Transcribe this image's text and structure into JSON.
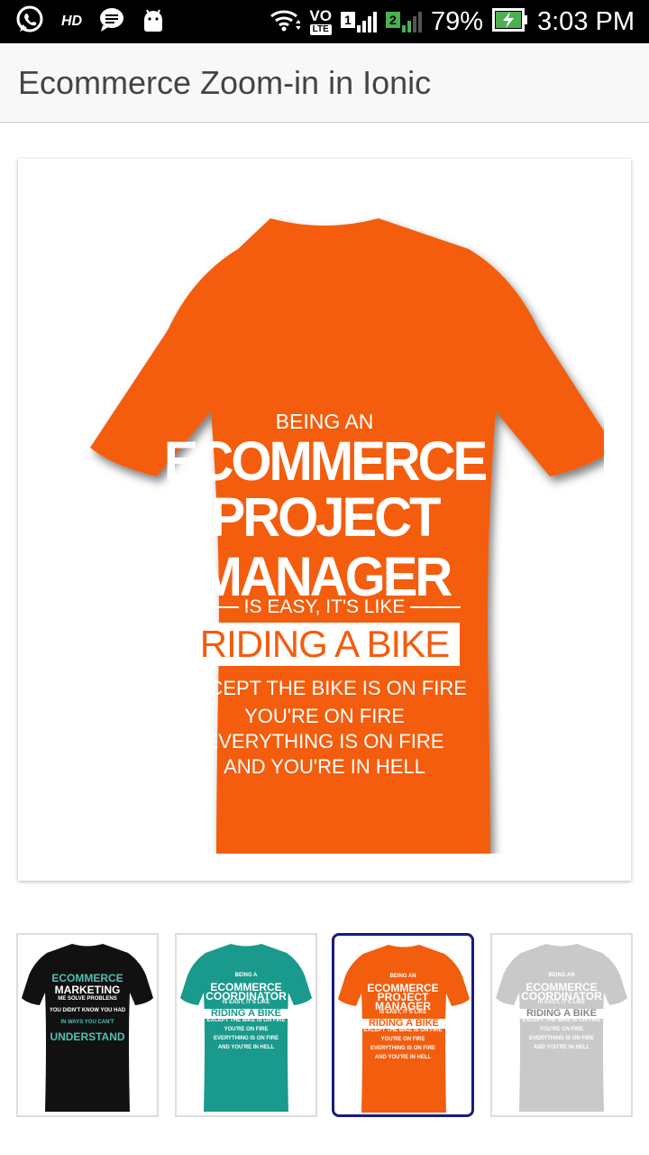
{
  "status_bar": {
    "hd": "HD",
    "vo": "VO",
    "lte": "LTE",
    "sim1": "1",
    "sim2": "2",
    "battery": "79%",
    "time": "3:03 PM"
  },
  "header": {
    "title": "Ecommerce Zoom-in in Ionic"
  },
  "main_image": {
    "shirt_color": "#f35d0e",
    "print": {
      "line_a": "BEING AN",
      "line_b": "ECOMMERCE",
      "line_c": "PROJECT",
      "line_d": "MANAGER",
      "line_e": "IS EASY, IT'S LIKE",
      "line_f": "RIDING A BIKE",
      "line_g": "EXCEPT THE BIKE IS ON FIRE",
      "line_h": "YOU'RE ON FIRE",
      "line_i": "EVERYTHING IS ON FIRE",
      "line_j": "AND YOU'RE IN HELL"
    }
  },
  "thumbnails": [
    {
      "color": "#111111",
      "selected": false,
      "lines": [
        "ECOMMERCE",
        "MARKETING",
        "ME SOLVE PROBLENS",
        "YOU DIDN'T KNOW YOU HAD",
        "IN WAYS YOU CAN'T",
        "UNDERSTAND"
      ]
    },
    {
      "color": "#1a9a8c",
      "selected": false,
      "lines": [
        "BEING A",
        "ECOMMERCE",
        "COORDINATOR",
        "IS EASY, IT'S LIKE",
        "RIDING A BIKE",
        "EXCEPT THE BIKE IS ON FIRE",
        "YOU'RE ON FIRE",
        "EVERYTHING IS ON FIRE",
        "AND YOU'RE IN HELL"
      ]
    },
    {
      "color": "#f35d0e",
      "selected": true,
      "lines": [
        "BEING AN",
        "ECOMMERCE",
        "PROJECT",
        "MANAGER",
        "IS EASY, IT'S LIKE",
        "RIDING A BIKE",
        "EXCEPT THE BIKE IS ON FIRE",
        "YOU'RE ON FIRE",
        "EVERYTHING IS ON FIRE",
        "AND YOU'RE IN HELL"
      ]
    },
    {
      "color": "#c9c9c9",
      "selected": false,
      "lines": [
        "BEING AN",
        "ECOMMERCE",
        "COORDINATOR",
        "IS EASY, IT'S LIKE",
        "RIDING A BIKE",
        "EXCEPT THE BIKE IS ON FIRE",
        "YOU'RE ON FIRE",
        "EVERYTHING IS ON FIRE",
        "AND YOU'RE IN HELL"
      ]
    }
  ],
  "colors": {
    "accent_selected_border": "#1a1a80",
    "header_bg": "#f8f8f8",
    "battery_green": "#4caf50"
  }
}
